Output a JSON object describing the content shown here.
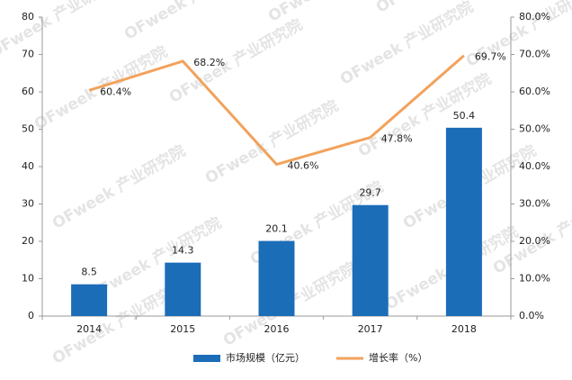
{
  "chart_data": {
    "type": "bar",
    "categories": [
      "2014",
      "2015",
      "2016",
      "2017",
      "2018"
    ],
    "series": [
      {
        "name": "市场规模（亿元）",
        "type": "bar",
        "color": "#1b6db8",
        "values": [
          8.5,
          14.3,
          20.1,
          29.7,
          50.4
        ]
      },
      {
        "name": "增长率（%）",
        "type": "line",
        "axis": "y2",
        "color": "#f2a25c",
        "values": [
          60.4,
          68.2,
          40.6,
          47.8,
          69.7
        ],
        "value_labels": [
          "60.4%",
          "68.2%",
          "40.6%",
          "47.8%",
          "69.7%"
        ]
      }
    ],
    "ylim": [
      0,
      80
    ],
    "yticks": [
      0,
      10,
      20,
      30,
      40,
      50,
      60,
      70,
      80
    ],
    "y2lim": [
      0,
      80
    ],
    "y2ticks": [
      {
        "value": 0,
        "label": "0.0%"
      },
      {
        "value": 10,
        "label": "10.0%"
      },
      {
        "value": 20,
        "label": "20.0%"
      },
      {
        "value": 30,
        "label": "30.0%"
      },
      {
        "value": 40,
        "label": "40.0%"
      },
      {
        "value": 50,
        "label": "50.0%"
      },
      {
        "value": 60,
        "label": "60.0%"
      },
      {
        "value": 70,
        "label": "70.0%"
      },
      {
        "value": 80,
        "label": "80.0%"
      }
    ],
    "legend": "bottom",
    "watermark": "OFweek 产业研究院"
  }
}
